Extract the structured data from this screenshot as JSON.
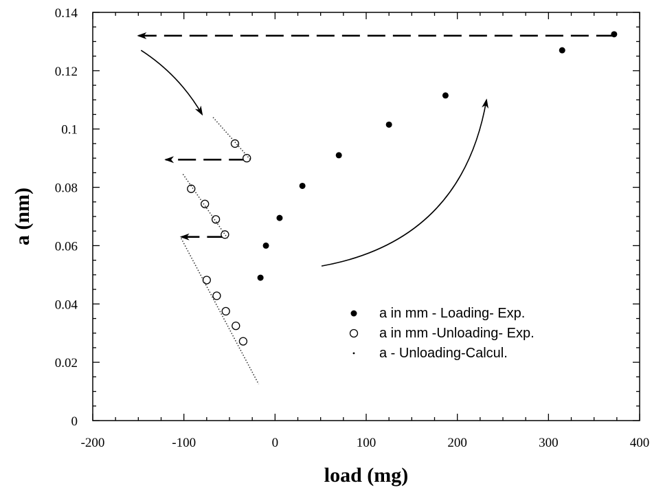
{
  "chart_data": {
    "type": "scatter",
    "xlabel": "load (mg)",
    "ylabel": "a (nm)",
    "xlim": [
      -200,
      400
    ],
    "ylim": [
      0,
      0.14
    ],
    "xticks": [
      -200,
      -100,
      0,
      100,
      200,
      300,
      400
    ],
    "xtick_labels": [
      "-200",
      "-100",
      "0",
      "100",
      "200",
      "300",
      "400"
    ],
    "yticks": [
      0,
      0.02,
      0.04,
      0.06,
      0.08,
      0.1,
      0.12,
      0.14
    ],
    "ytick_labels": [
      "0",
      "0.02",
      "0.04",
      "0.06",
      "0.08",
      "0.1",
      "0.12",
      "0.14"
    ],
    "grid": false,
    "legend_position": "lower-right",
    "series": [
      {
        "name": "a in mm - Loading- Exp.",
        "marker": "filled-circle",
        "points": [
          {
            "x": -16,
            "y": 0.049
          },
          {
            "x": -10,
            "y": 0.06
          },
          {
            "x": 5,
            "y": 0.0695
          },
          {
            "x": 30,
            "y": 0.0805
          },
          {
            "x": 70,
            "y": 0.091
          },
          {
            "x": 125,
            "y": 0.1015
          },
          {
            "x": 187,
            "y": 0.1115
          },
          {
            "x": 315,
            "y": 0.127
          },
          {
            "x": 372,
            "y": 0.1325
          }
        ]
      },
      {
        "name": "a in mm -Unloading- Exp.",
        "marker": "open-circle",
        "points": [
          {
            "x": -44,
            "y": 0.095
          },
          {
            "x": -31,
            "y": 0.09
          },
          {
            "x": -92,
            "y": 0.0795
          },
          {
            "x": -77,
            "y": 0.0743
          },
          {
            "x": -65,
            "y": 0.069
          },
          {
            "x": -55,
            "y": 0.0638
          },
          {
            "x": -75,
            "y": 0.0482
          },
          {
            "x": -64,
            "y": 0.0428
          },
          {
            "x": -54,
            "y": 0.0375
          },
          {
            "x": -43,
            "y": 0.0325
          },
          {
            "x": -35,
            "y": 0.0272
          }
        ]
      },
      {
        "name": "a  - Unloading-Calcul.",
        "marker": "dot",
        "curves": [
          [
            {
              "x": -68,
              "y": 0.104
            },
            {
              "x": -27,
              "y": 0.0895
            }
          ],
          [
            {
              "x": -101,
              "y": 0.0845
            },
            {
              "x": -52,
              "y": 0.0625
            }
          ],
          [
            {
              "x": -103,
              "y": 0.0625
            },
            {
              "x": -18,
              "y": 0.0125
            }
          ]
        ]
      }
    ],
    "annotations": [
      {
        "kind": "dashed-arrow",
        "from": {
          "x": 372,
          "y": 0.132
        },
        "to": {
          "x": -150,
          "y": 0.132
        }
      },
      {
        "kind": "dashed-arrow",
        "from": {
          "x": -31,
          "y": 0.0895
        },
        "to": {
          "x": -120,
          "y": 0.0895
        }
      },
      {
        "kind": "dashed-arrow",
        "from": {
          "x": -55,
          "y": 0.063
        },
        "to": {
          "x": -103,
          "y": 0.063
        }
      },
      {
        "kind": "curved-arrow",
        "from": {
          "x": -147,
          "y": 0.127
        },
        "to": {
          "x": -80,
          "y": 0.105
        }
      },
      {
        "kind": "curved-arrow",
        "from": {
          "x": 51,
          "y": 0.053
        },
        "to": {
          "x": 232,
          "y": 0.11
        }
      }
    ]
  }
}
